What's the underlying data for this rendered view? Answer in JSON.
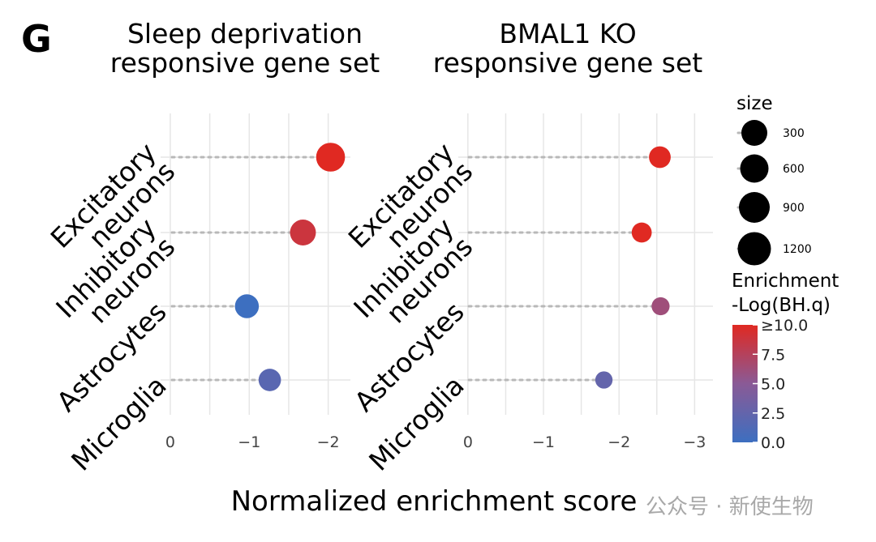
{
  "figure": {
    "panel_letter": "G",
    "watermark": "公众号 · 新使生物"
  },
  "chart_data": [
    {
      "type": "scatter",
      "subtype": "lollipop",
      "title_lines": [
        "Sleep deprivation",
        "responsive gene set"
      ],
      "categories": [
        "Excitatory neurons",
        "Inhibitory neurons",
        "Astrocytes",
        "Microglia"
      ],
      "category_label_lines": [
        [
          "Excitatory",
          "neurons"
        ],
        [
          "Inhibitory",
          "neurons"
        ],
        [
          "Astrocytes"
        ],
        [
          "Microglia"
        ]
      ],
      "values": [
        -2.03,
        -1.68,
        -0.97,
        -1.26
      ],
      "size": [
        1000,
        780,
        650,
        560
      ],
      "neg_log_bhq": [
        10.0,
        8.8,
        0.0,
        1.8
      ],
      "xlim": [
        0.02,
        -2.24
      ],
      "xticks": [
        0,
        -1,
        -2
      ],
      "xtick_labels": [
        "0",
        "−1",
        "−2"
      ]
    },
    {
      "type": "scatter",
      "subtype": "lollipop",
      "title_lines": [
        "BMAL1 KO",
        "responsive gene set"
      ],
      "categories": [
        "Excitatory neurons",
        "Inhibitory neurons",
        "Astrocytes",
        "Microglia"
      ],
      "category_label_lines": [
        [
          "Excitatory",
          "neurons"
        ],
        [
          "Inhibitory",
          "neurons"
        ],
        [
          "Astrocytes"
        ],
        [
          "Microglia"
        ]
      ],
      "values": [
        -2.54,
        -2.3,
        -2.55,
        -1.8
      ],
      "size": [
        520,
        430,
        330,
        300
      ],
      "neg_log_bhq": [
        10.0,
        10.0,
        6.2,
        2.5
      ],
      "xlim": [
        0.02,
        -3.2
      ],
      "xticks": [
        0,
        -1,
        -2,
        -3
      ],
      "xtick_labels": [
        "0",
        "−1",
        "−2",
        "−3"
      ]
    }
  ],
  "shared_axis": {
    "xlabel": "Normalized enrichment score"
  },
  "legend": {
    "size": {
      "title": "size",
      "levels": [
        300,
        600,
        900,
        1200
      ],
      "labels": [
        "300",
        "600",
        "900",
        "1200"
      ]
    },
    "color": {
      "title_lines": [
        "Enrichment",
        "-Log(BH.q)"
      ],
      "range": [
        0,
        10
      ],
      "ticks": [
        0,
        2.5,
        5.0,
        7.5,
        10.0
      ],
      "tick_labels": [
        "0.0",
        "2.5",
        "5.0",
        "7.5",
        "≥10.0"
      ],
      "low_color": "#3d6fc0",
      "mid_color": "#8a5a96",
      "high_color": "#e02922"
    }
  }
}
